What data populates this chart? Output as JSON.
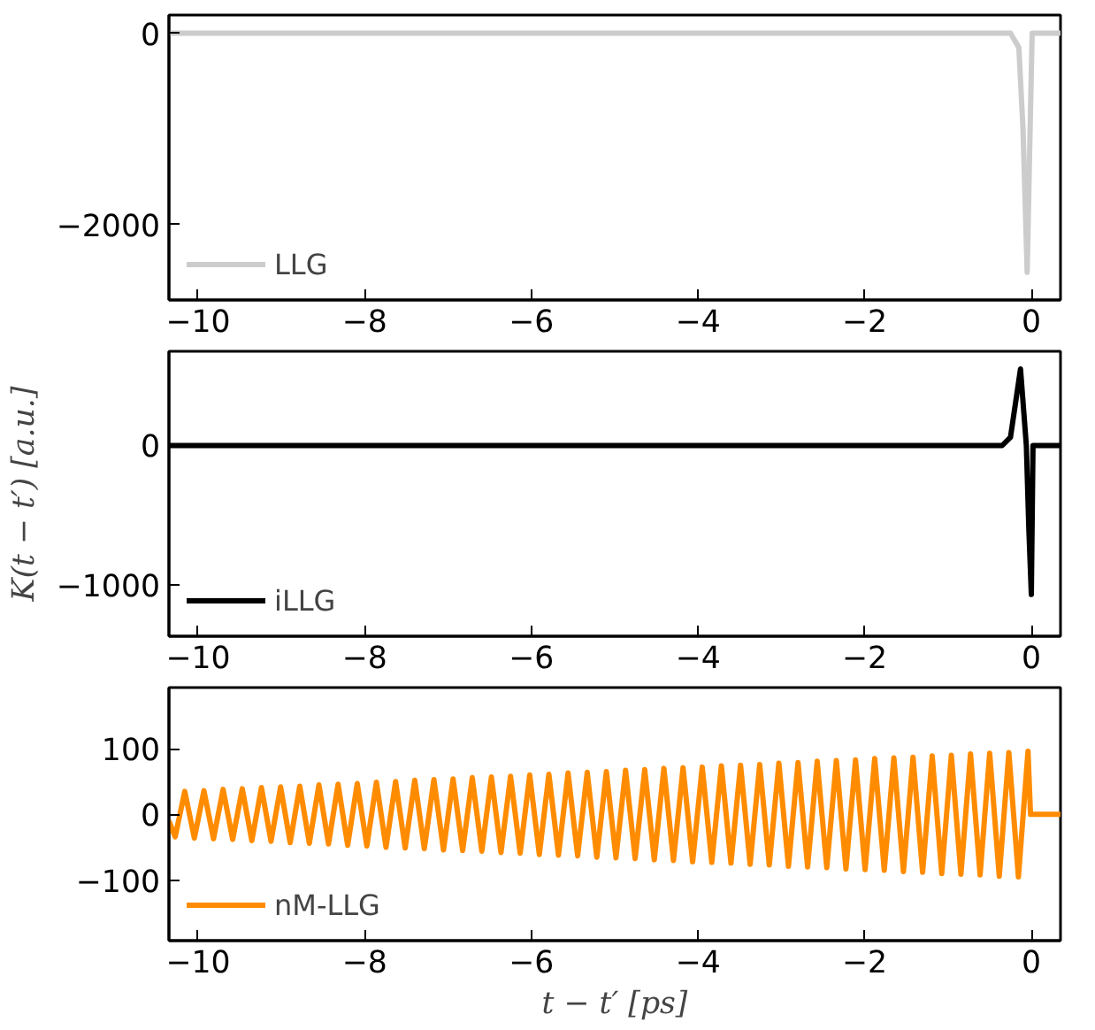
{
  "chart_data": [
    {
      "type": "line",
      "x": [
        -10.35,
        -0.25,
        -0.15,
        -0.1,
        -0.05,
        -0.01,
        0.01,
        0.35
      ],
      "series": [
        {
          "name": "LLG",
          "color": "#cccccc",
          "values": [
            0,
            0,
            -150,
            -1000,
            -2500,
            -800,
            0,
            0
          ]
        }
      ],
      "xlim": [
        -10.35,
        0.35
      ],
      "ylim": [
        -2790,
        190
      ],
      "xticks": [
        {
          "value": -10,
          "label": "−10"
        },
        {
          "value": -8,
          "label": "−8"
        },
        {
          "value": -6,
          "label": "−6"
        },
        {
          "value": -4,
          "label": "−4"
        },
        {
          "value": -2,
          "label": "−2"
        },
        0
      ],
      "yticks": [
        {
          "value": -2000,
          "label": "−2000"
        },
        0
      ],
      "legend": "bottom left",
      "grid": false
    },
    {
      "type": "line",
      "x": [
        -10.35,
        -0.35,
        -0.25,
        -0.13,
        -0.06,
        -0.03,
        0.0,
        0.02,
        0.35
      ],
      "series": [
        {
          "name": "iLLG",
          "color": "#000000",
          "values": [
            0,
            0,
            60,
            550,
            0,
            -600,
            -1070,
            0,
            0
          ]
        }
      ],
      "xlim": [
        -10.35,
        0.35
      ],
      "ylim": [
        -1370,
        677
      ],
      "xticks": [
        {
          "value": -10,
          "label": "−10"
        },
        {
          "value": -8,
          "label": "−8"
        },
        {
          "value": -6,
          "label": "−6"
        },
        {
          "value": -4,
          "label": "−4"
        },
        {
          "value": -2,
          "label": "−2"
        },
        0
      ],
      "yticks": [
        {
          "value": -1000,
          "label": "−1000"
        },
        0
      ],
      "ylabel": "K(t − t′) [a.u.]",
      "legend": "bottom left",
      "grid": false
    },
    {
      "type": "line",
      "x": [
        -10.35,
        -10.275,
        -10.16,
        -10.045,
        -9.93,
        -9.815,
        -9.7,
        -9.585,
        -9.47,
        -9.355,
        -9.24,
        -9.125,
        -9.01,
        -8.895,
        -8.78,
        -8.665,
        -8.55,
        -8.435,
        -8.32,
        -8.205,
        -8.09,
        -7.975,
        -7.86,
        -7.745,
        -7.63,
        -7.515,
        -7.4,
        -7.285,
        -7.17,
        -7.055,
        -6.94,
        -6.825,
        -6.71,
        -6.595,
        -6.48,
        -6.365,
        -6.25,
        -6.135,
        -6.02,
        -5.905,
        -5.79,
        -5.675,
        -5.56,
        -5.445,
        -5.33,
        -5.215,
        -5.1,
        -4.985,
        -4.87,
        -4.755,
        -4.64,
        -4.525,
        -4.41,
        -4.295,
        -4.18,
        -4.065,
        -3.95,
        -3.835,
        -3.72,
        -3.605,
        -3.49,
        -3.375,
        -3.26,
        -3.145,
        -3.03,
        -2.915,
        -2.8,
        -2.685,
        -2.57,
        -2.455,
        -2.34,
        -2.225,
        -2.11,
        -1.995,
        -1.88,
        -1.765,
        -1.65,
        -1.535,
        -1.42,
        -1.305,
        -1.19,
        -1.075,
        -0.96,
        -0.845,
        -0.73,
        -0.615,
        -0.5,
        -0.385,
        -0.27,
        -0.155,
        -0.04,
        -0.01,
        0.35
      ],
      "series": [
        {
          "name": "nM-LLG",
          "color": "#ff8c00",
          "values": [
            -10,
            -34,
            35,
            -36,
            36,
            -37,
            38,
            -38,
            39,
            -40,
            41,
            -41,
            42,
            -43,
            43,
            -44,
            45,
            -45,
            46,
            -47,
            47,
            -48,
            49,
            -50,
            50,
            -51,
            52,
            -52,
            53,
            -54,
            54,
            -55,
            56,
            -56,
            57,
            -58,
            58,
            -59,
            60,
            -61,
            61,
            -62,
            63,
            -63,
            64,
            -65,
            65,
            -66,
            67,
            -67,
            68,
            -69,
            70,
            -70,
            71,
            -72,
            72,
            -73,
            74,
            -74,
            75,
            -76,
            76,
            -77,
            78,
            -79,
            79,
            -80,
            81,
            -81,
            82,
            -83,
            83,
            -84,
            85,
            -85,
            86,
            -87,
            87,
            -88,
            89,
            -90,
            90,
            -91,
            92,
            -92,
            93,
            -94,
            94,
            -95,
            96,
            0,
            0
          ]
        }
      ],
      "xlim": [
        -10.35,
        0.35
      ],
      "ylim": [
        -192,
        193
      ],
      "xticks": [
        {
          "value": -10,
          "label": "−10"
        },
        {
          "value": -8,
          "label": "−8"
        },
        {
          "value": -6,
          "label": "−6"
        },
        {
          "value": -4,
          "label": "−4"
        },
        {
          "value": -2,
          "label": "−2"
        },
        0
      ],
      "yticks": [
        {
          "value": -100,
          "label": "−100"
        },
        0,
        100
      ],
      "xlabel": "t − t′ [ps]",
      "legend": "bottom left",
      "grid": false
    }
  ]
}
